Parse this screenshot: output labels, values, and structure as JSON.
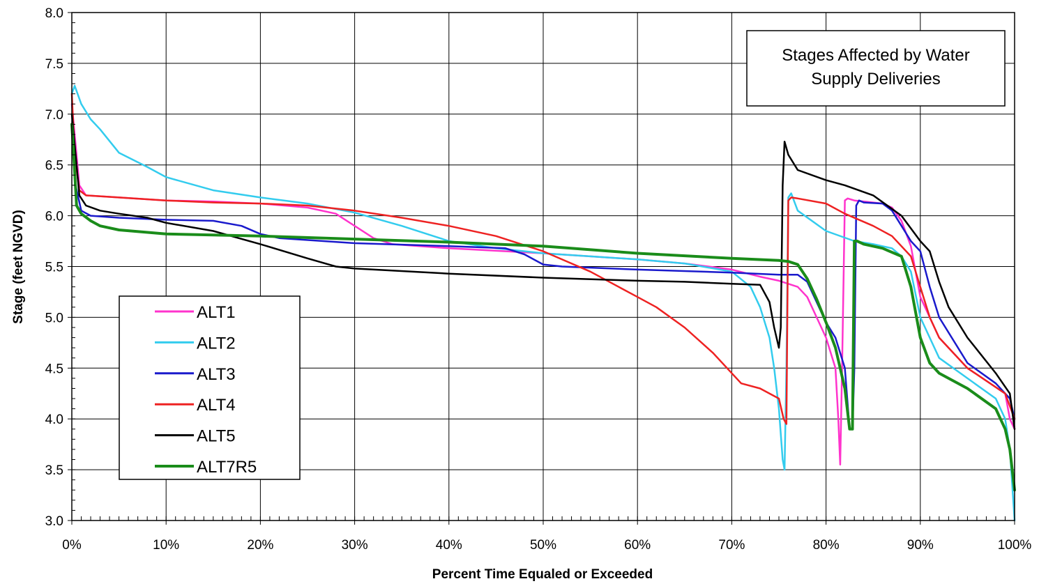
{
  "chart_data": {
    "type": "line",
    "title": "",
    "annotation": [
      "Stages Affected by Water",
      "Supply Deliveries"
    ],
    "xlabel": "Percent Time Equaled or Exceeded",
    "ylabel": "Stage (feet NGVD)",
    "xlim": [
      0,
      100
    ],
    "ylim": [
      3.0,
      8.0
    ],
    "x_ticks": [
      0,
      10,
      20,
      30,
      40,
      50,
      60,
      70,
      80,
      90,
      100
    ],
    "x_tick_labels": [
      "0%",
      "10%",
      "20%",
      "30%",
      "40%",
      "50%",
      "60%",
      "70%",
      "80%",
      "90%",
      "100%"
    ],
    "y_ticks": [
      3.0,
      3.5,
      4.0,
      4.5,
      5.0,
      5.5,
      6.0,
      6.5,
      7.0,
      7.5,
      8.0
    ],
    "y_tick_labels": [
      "3.0",
      "3.5",
      "4.0",
      "4.5",
      "5.0",
      "5.5",
      "6.0",
      "6.5",
      "7.0",
      "7.5",
      "8.0"
    ],
    "grid": true,
    "legend_position": "lower-left",
    "series": [
      {
        "name": "ALT1",
        "color": "#ff33cc",
        "x": [
          0,
          0.3,
          0.8,
          1.5,
          5,
          10,
          15,
          20,
          25,
          28,
          30,
          32,
          34,
          40,
          50,
          60,
          65,
          70,
          73,
          75,
          77,
          78,
          79,
          80,
          81,
          81.3,
          81.5,
          81.7,
          82,
          82.3,
          83,
          85,
          86,
          87,
          88,
          89,
          90,
          91,
          92,
          95,
          99,
          99.5,
          100
        ],
        "y": [
          7.1,
          6.8,
          6.3,
          6.2,
          6.18,
          6.15,
          6.14,
          6.12,
          6.08,
          6.02,
          5.9,
          5.78,
          5.72,
          5.68,
          5.63,
          5.57,
          5.53,
          5.47,
          5.4,
          5.36,
          5.3,
          5.2,
          5.0,
          4.8,
          4.5,
          4.0,
          3.55,
          4.5,
          6.15,
          6.17,
          6.15,
          6.13,
          6.12,
          6.08,
          5.95,
          5.7,
          5.2,
          5.0,
          4.8,
          4.5,
          4.25,
          4.0,
          3.9
        ]
      },
      {
        "name": "ALT2",
        "color": "#33ccee",
        "x": [
          0,
          0.3,
          1,
          2,
          3,
          5,
          8,
          10,
          15,
          20,
          25,
          30,
          35,
          40,
          45,
          50,
          55,
          60,
          65,
          70,
          72,
          73,
          74,
          74.5,
          75,
          75.4,
          75.6,
          75.8,
          76,
          76.3,
          77,
          80,
          83,
          85,
          87,
          88,
          89,
          90,
          91,
          92,
          95,
          98,
          99,
          99.5,
          100
        ],
        "y": [
          7.2,
          7.28,
          7.1,
          6.95,
          6.85,
          6.62,
          6.48,
          6.38,
          6.25,
          6.18,
          6.12,
          6.03,
          5.9,
          5.75,
          5.68,
          5.63,
          5.6,
          5.57,
          5.53,
          5.45,
          5.3,
          5.1,
          4.8,
          4.5,
          4.1,
          3.6,
          3.5,
          4.5,
          6.18,
          6.22,
          6.05,
          5.85,
          5.75,
          5.72,
          5.68,
          5.6,
          5.45,
          5.0,
          4.8,
          4.6,
          4.4,
          4.2,
          4.0,
          3.7,
          3.0
        ]
      },
      {
        "name": "ALT3",
        "color": "#1a1acc",
        "x": [
          0,
          0.4,
          1,
          2,
          5,
          10,
          15,
          18,
          20,
          22,
          30,
          40,
          46,
          48,
          50,
          52,
          60,
          70,
          75,
          77,
          78,
          79,
          80,
          81,
          82,
          82.5,
          82.8,
          83,
          83.2,
          83.5,
          84,
          86,
          87,
          88,
          89,
          90,
          91,
          92,
          95,
          98,
          99.5,
          100
        ],
        "y": [
          6.9,
          6.3,
          6.05,
          6.0,
          5.98,
          5.96,
          5.95,
          5.9,
          5.82,
          5.78,
          5.73,
          5.7,
          5.68,
          5.62,
          5.52,
          5.5,
          5.47,
          5.44,
          5.42,
          5.42,
          5.35,
          5.15,
          4.95,
          4.8,
          4.5,
          3.9,
          3.9,
          4.5,
          6.1,
          6.15,
          6.13,
          6.12,
          6.05,
          5.9,
          5.75,
          5.65,
          5.3,
          5.0,
          4.55,
          4.35,
          4.2,
          4.0
        ]
      },
      {
        "name": "ALT4",
        "color": "#ee2222",
        "x": [
          0,
          0.3,
          0.8,
          1.5,
          5,
          10,
          15,
          20,
          25,
          30,
          35,
          40,
          45,
          50,
          55,
          58,
          60,
          62,
          65,
          68,
          71,
          73,
          75,
          75.5,
          75.8,
          76,
          76.3,
          77,
          80,
          82,
          85,
          87,
          89,
          90,
          91,
          92,
          95,
          99,
          100
        ],
        "y": [
          7.2,
          6.6,
          6.25,
          6.2,
          6.18,
          6.15,
          6.13,
          6.12,
          6.1,
          6.05,
          5.98,
          5.9,
          5.8,
          5.65,
          5.45,
          5.3,
          5.2,
          5.1,
          4.9,
          4.65,
          4.35,
          4.3,
          4.2,
          4.0,
          3.95,
          6.15,
          6.18,
          6.17,
          6.12,
          6.02,
          5.9,
          5.8,
          5.6,
          5.3,
          5.0,
          4.8,
          4.5,
          4.25,
          4.0
        ]
      },
      {
        "name": "ALT5",
        "color": "#000000",
        "x": [
          0,
          0.3,
          0.8,
          1.5,
          3,
          5,
          8,
          10,
          15,
          20,
          25,
          28,
          30,
          40,
          50,
          60,
          65,
          70,
          73,
          74,
          74.5,
          75,
          75.2,
          75.4,
          75.6,
          76,
          77,
          80,
          82,
          85,
          88,
          90,
          91,
          92,
          93,
          95,
          98,
          99.5,
          100
        ],
        "y": [
          7.0,
          6.7,
          6.2,
          6.1,
          6.05,
          6.02,
          5.98,
          5.93,
          5.85,
          5.72,
          5.58,
          5.5,
          5.48,
          5.43,
          5.39,
          5.36,
          5.35,
          5.33,
          5.32,
          5.15,
          4.9,
          4.7,
          4.9,
          6.3,
          6.73,
          6.6,
          6.45,
          6.35,
          6.3,
          6.2,
          6.0,
          5.75,
          5.65,
          5.35,
          5.1,
          4.8,
          4.45,
          4.25,
          3.9
        ]
      },
      {
        "name": "ALT7R5",
        "color": "#1a8c1a",
        "x": [
          0,
          0.2,
          0.5,
          1,
          2,
          3,
          5,
          10,
          20,
          30,
          40,
          50,
          60,
          70,
          75,
          76,
          77,
          78,
          79,
          80,
          81,
          82,
          82.5,
          82.8,
          83,
          83.3,
          84,
          86,
          88,
          89,
          90,
          91,
          92,
          95,
          98,
          99,
          99.5,
          100
        ],
        "y": [
          6.9,
          6.6,
          6.1,
          6.02,
          5.95,
          5.9,
          5.86,
          5.82,
          5.8,
          5.77,
          5.74,
          5.7,
          5.63,
          5.58,
          5.56,
          5.55,
          5.52,
          5.38,
          5.18,
          4.95,
          4.7,
          4.3,
          3.9,
          3.9,
          5.75,
          5.75,
          5.72,
          5.68,
          5.6,
          5.3,
          4.8,
          4.55,
          4.45,
          4.3,
          4.1,
          3.9,
          3.7,
          3.3
        ]
      }
    ]
  }
}
